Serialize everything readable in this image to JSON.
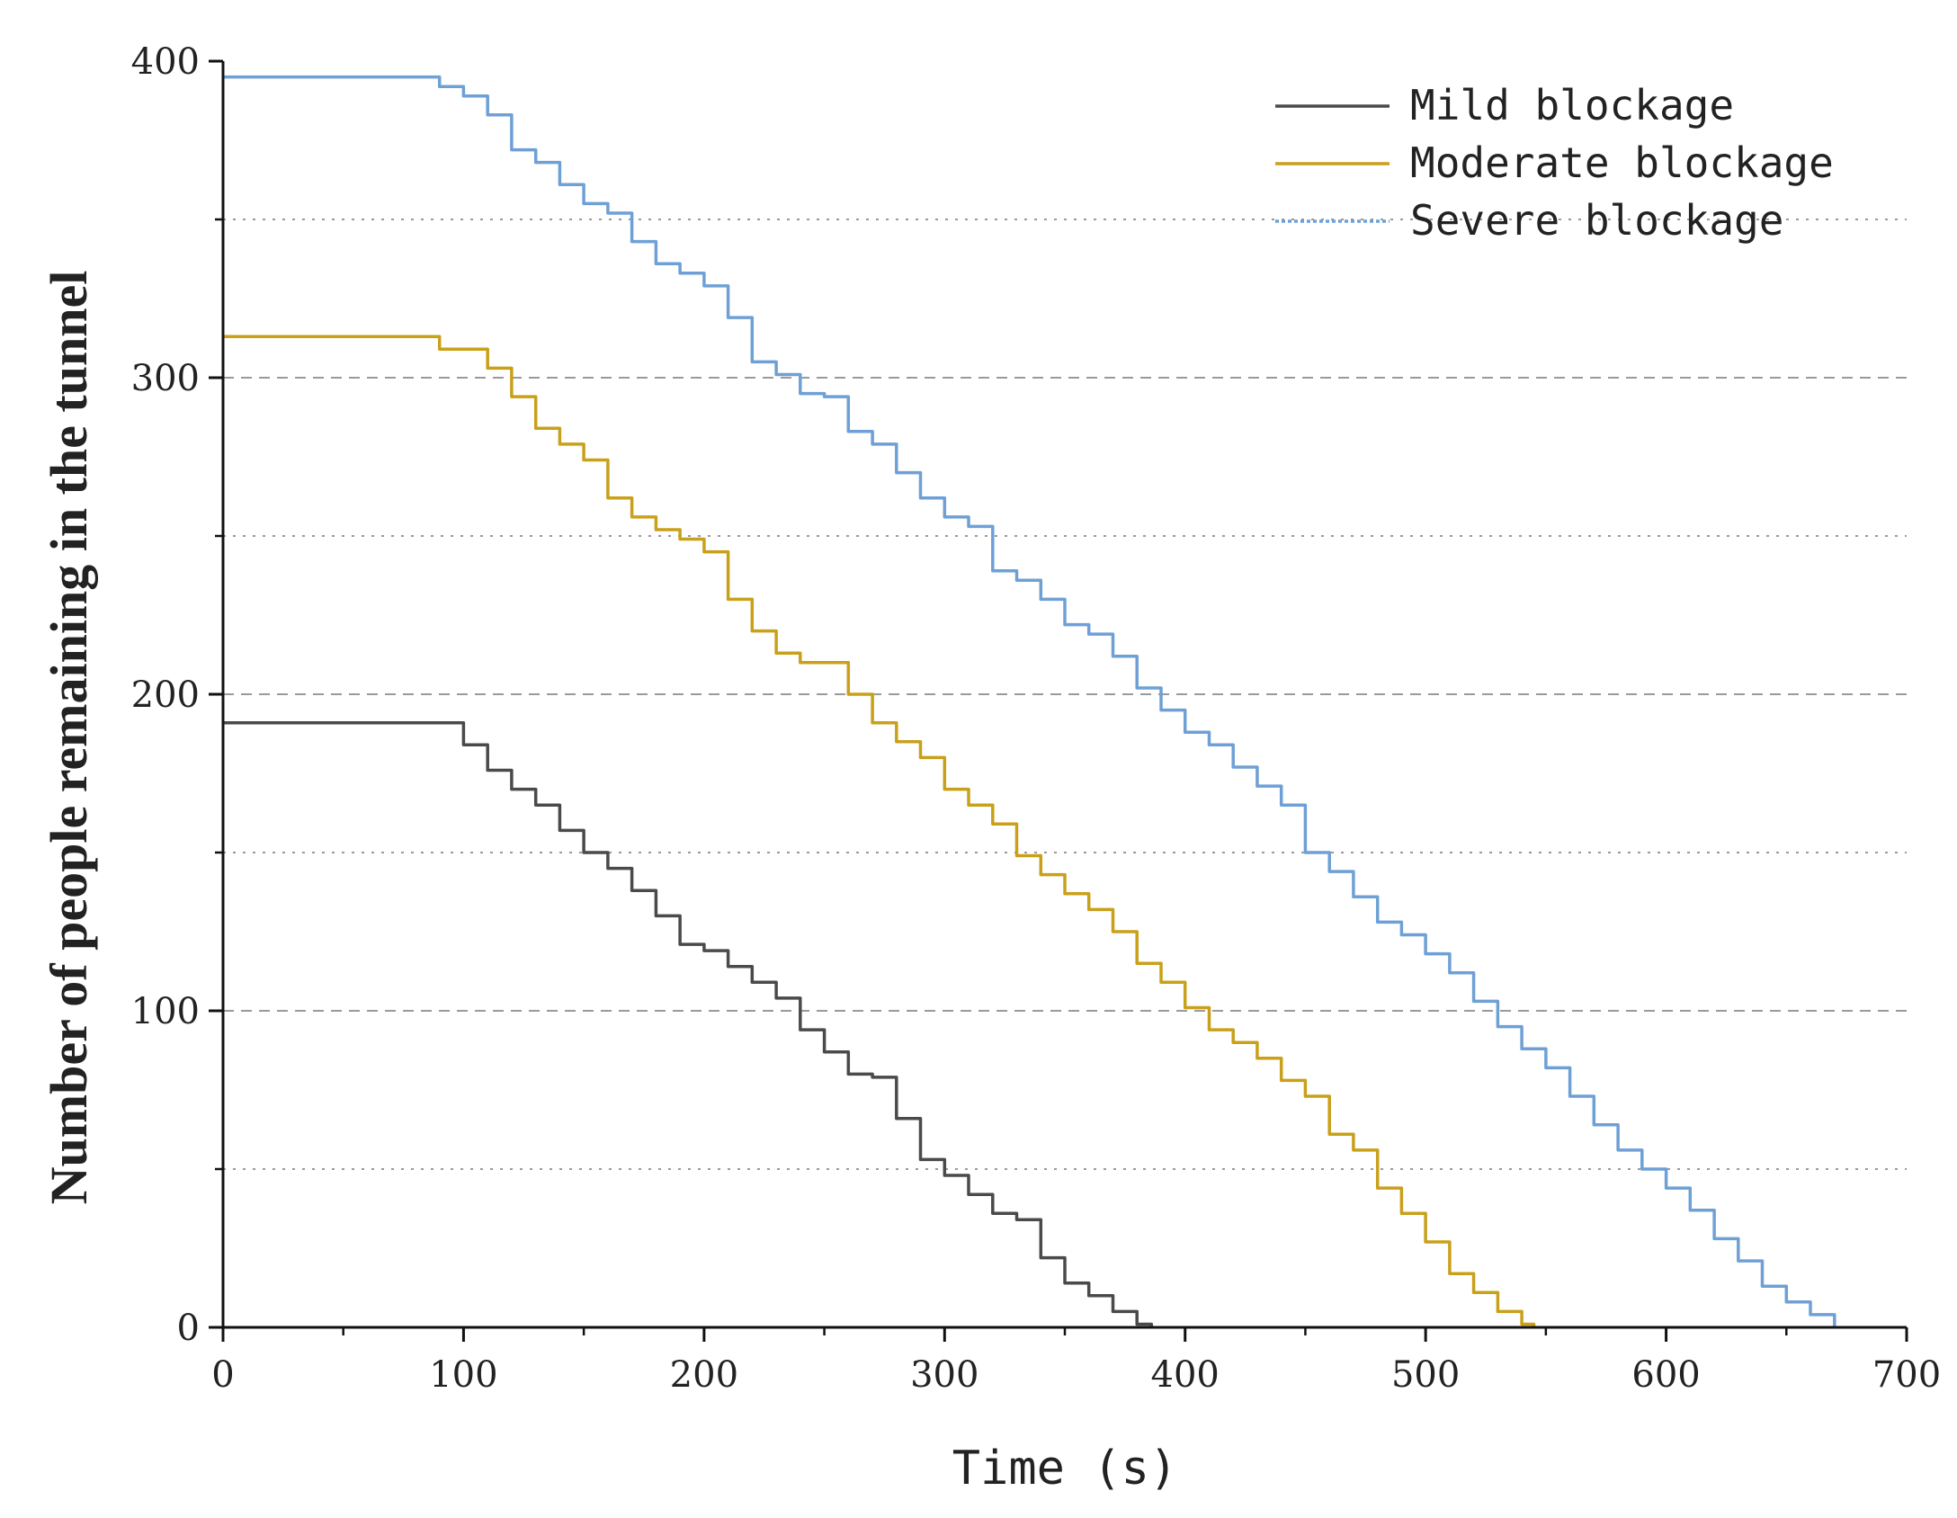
{
  "chart_data": {
    "type": "line",
    "title": "",
    "xlabel": "Time (s)",
    "ylabel": "Number of people remaining in the tunnel",
    "xlim": [
      0,
      700
    ],
    "ylim": [
      0,
      400
    ],
    "x_ticks": [
      0,
      100,
      200,
      300,
      400,
      500,
      600,
      700
    ],
    "y_ticks": [
      0,
      100,
      200,
      300,
      400
    ],
    "grid_dashed": [
      100,
      200,
      300
    ],
    "grid_dotted": [
      50,
      150,
      250,
      350
    ],
    "legend_position": "top-right",
    "series": [
      {
        "name": "Mild blockage",
        "color": "#4a4a4a",
        "style": "solid",
        "points": [
          [
            0,
            191
          ],
          [
            90,
            191
          ],
          [
            100,
            184
          ],
          [
            110,
            176
          ],
          [
            120,
            170
          ],
          [
            130,
            165
          ],
          [
            140,
            157
          ],
          [
            150,
            150
          ],
          [
            160,
            145
          ],
          [
            170,
            138
          ],
          [
            180,
            130
          ],
          [
            190,
            121
          ],
          [
            200,
            119
          ],
          [
            210,
            114
          ],
          [
            220,
            109
          ],
          [
            230,
            104
          ],
          [
            240,
            94
          ],
          [
            250,
            87
          ],
          [
            260,
            80
          ],
          [
            270,
            79
          ],
          [
            280,
            66
          ],
          [
            290,
            53
          ],
          [
            300,
            48
          ],
          [
            310,
            42
          ],
          [
            320,
            36
          ],
          [
            330,
            34
          ],
          [
            340,
            22
          ],
          [
            350,
            14
          ],
          [
            360,
            10
          ],
          [
            370,
            5
          ],
          [
            380,
            1
          ],
          [
            386,
            0
          ]
        ]
      },
      {
        "name": "Moderate blockage",
        "color": "#c9a01a",
        "style": "solid",
        "points": [
          [
            0,
            313
          ],
          [
            70,
            313
          ],
          [
            90,
            309
          ],
          [
            110,
            303
          ],
          [
            120,
            294
          ],
          [
            130,
            284
          ],
          [
            140,
            279
          ],
          [
            150,
            274
          ],
          [
            160,
            262
          ],
          [
            170,
            256
          ],
          [
            180,
            252
          ],
          [
            190,
            249
          ],
          [
            200,
            245
          ],
          [
            210,
            230
          ],
          [
            220,
            220
          ],
          [
            230,
            213
          ],
          [
            240,
            210
          ],
          [
            250,
            210
          ],
          [
            260,
            200
          ],
          [
            270,
            191
          ],
          [
            280,
            185
          ],
          [
            290,
            180
          ],
          [
            300,
            170
          ],
          [
            310,
            165
          ],
          [
            320,
            159
          ],
          [
            330,
            149
          ],
          [
            340,
            143
          ],
          [
            350,
            137
          ],
          [
            360,
            132
          ],
          [
            370,
            125
          ],
          [
            380,
            115
          ],
          [
            390,
            109
          ],
          [
            400,
            101
          ],
          [
            410,
            94
          ],
          [
            420,
            90
          ],
          [
            430,
            85
          ],
          [
            440,
            78
          ],
          [
            450,
            73
          ],
          [
            460,
            61
          ],
          [
            470,
            56
          ],
          [
            480,
            44
          ],
          [
            490,
            36
          ],
          [
            500,
            27
          ],
          [
            510,
            17
          ],
          [
            520,
            11
          ],
          [
            530,
            5
          ],
          [
            540,
            1
          ],
          [
            545,
            0
          ]
        ]
      },
      {
        "name": "Severe blockage",
        "color": "#6ea0d6",
        "style": "dotted-legend",
        "points": [
          [
            0,
            395
          ],
          [
            70,
            395
          ],
          [
            90,
            392
          ],
          [
            100,
            389
          ],
          [
            110,
            383
          ],
          [
            120,
            372
          ],
          [
            130,
            368
          ],
          [
            140,
            361
          ],
          [
            150,
            355
          ],
          [
            160,
            352
          ],
          [
            170,
            343
          ],
          [
            180,
            336
          ],
          [
            190,
            333
          ],
          [
            200,
            329
          ],
          [
            210,
            319
          ],
          [
            220,
            305
          ],
          [
            230,
            301
          ],
          [
            240,
            295
          ],
          [
            250,
            294
          ],
          [
            260,
            283
          ],
          [
            270,
            279
          ],
          [
            280,
            270
          ],
          [
            290,
            262
          ],
          [
            300,
            256
          ],
          [
            310,
            253
          ],
          [
            320,
            239
          ],
          [
            330,
            236
          ],
          [
            340,
            230
          ],
          [
            350,
            222
          ],
          [
            360,
            219
          ],
          [
            370,
            212
          ],
          [
            380,
            202
          ],
          [
            390,
            195
          ],
          [
            400,
            188
          ],
          [
            410,
            184
          ],
          [
            420,
            177
          ],
          [
            430,
            171
          ],
          [
            440,
            165
          ],
          [
            450,
            150
          ],
          [
            460,
            144
          ],
          [
            470,
            136
          ],
          [
            480,
            128
          ],
          [
            490,
            124
          ],
          [
            500,
            118
          ],
          [
            510,
            112
          ],
          [
            520,
            103
          ],
          [
            530,
            95
          ],
          [
            540,
            88
          ],
          [
            550,
            82
          ],
          [
            560,
            73
          ],
          [
            570,
            64
          ],
          [
            580,
            56
          ],
          [
            590,
            50
          ],
          [
            600,
            44
          ],
          [
            610,
            37
          ],
          [
            620,
            28
          ],
          [
            630,
            21
          ],
          [
            640,
            13
          ],
          [
            650,
            8
          ],
          [
            660,
            4
          ],
          [
            670,
            0
          ]
        ]
      }
    ]
  }
}
